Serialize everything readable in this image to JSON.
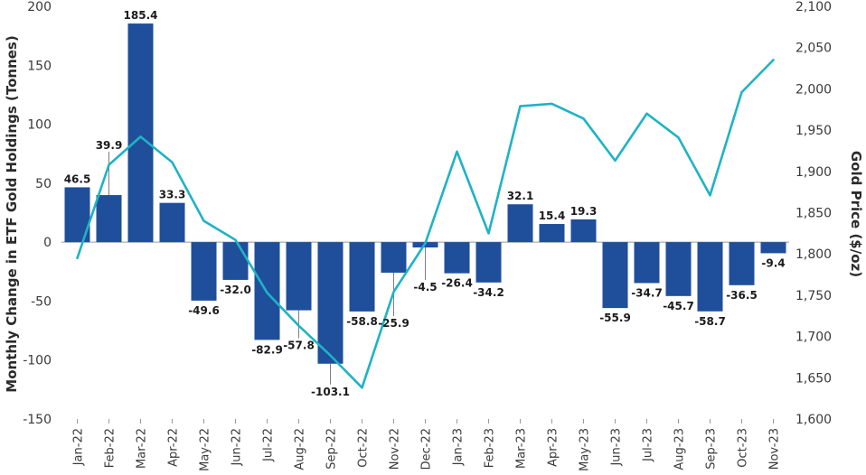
{
  "chart_data": {
    "type": "bar+line",
    "title": "",
    "categories": [
      "Jan-22",
      "Feb-22",
      "Mar-22",
      "Apr-22",
      "May-22",
      "Jun-22",
      "Jul-22",
      "Aug-22",
      "Sep-22",
      "Oct-22",
      "Nov-22",
      "Dec-22",
      "Jan-23",
      "Feb-23",
      "Mar-23",
      "Apr-23",
      "May-23",
      "Jun-23",
      "Jul-23",
      "Aug-23",
      "Sep-23",
      "Oct-23",
      "Nov-23"
    ],
    "series": [
      {
        "type": "bar",
        "axis": "left",
        "values": [
          46.5,
          39.9,
          185.4,
          33.3,
          -49.6,
          -32.0,
          -82.9,
          -57.8,
          -103.1,
          -58.8,
          -25.9,
          -4.5,
          -26.4,
          -34.2,
          32.1,
          15.4,
          19.3,
          -55.9,
          -34.7,
          -45.7,
          -58.7,
          -36.5,
          -9.4
        ],
        "data_labels": [
          "46.5",
          "39.9",
          "185.4",
          "33.3",
          "-49.6",
          "-32.0",
          "-82.9",
          "-57.8",
          "-103.1",
          "-58.8",
          "-25.9",
          "-4.5",
          "-26.4",
          "-34.2",
          "32.1",
          "15.4",
          "19.3",
          "-55.9",
          "-34.7",
          "-45.7",
          "-58.7",
          "-36.5",
          "-9.4"
        ]
      },
      {
        "type": "line",
        "axis": "right",
        "values": [
          1795,
          1908,
          1942,
          1911,
          1840,
          1817,
          1753,
          1713,
          1677,
          1638,
          1754,
          1813,
          1924,
          1825,
          1979,
          1982,
          1964,
          1913,
          1970,
          1941,
          1871,
          1996,
          2035
        ]
      }
    ],
    "ylabel_left": "Monthly Change in ETF Gold Holdings (Tonnes)",
    "ylabel_right": "Gold Price ($/oz)",
    "ylim_left": [
      -150,
      200
    ],
    "ylim_right": [
      1600,
      2100
    ],
    "yticks_left": [
      "200",
      "150",
      "100",
      "50",
      "0",
      "-50",
      "-100",
      "-150"
    ],
    "yticks_right": [
      "2,100",
      "2,050",
      "2,000",
      "1,950",
      "1,900",
      "1,850",
      "1,800",
      "1,750",
      "1,700",
      "1,650",
      "1,600"
    ],
    "grid": false,
    "legend": "none",
    "colors": {
      "bar": "#1f4e9b",
      "line": "#1eb3c4",
      "zero_line": "#9a9a9a",
      "leader": "#7f7f7f"
    }
  }
}
